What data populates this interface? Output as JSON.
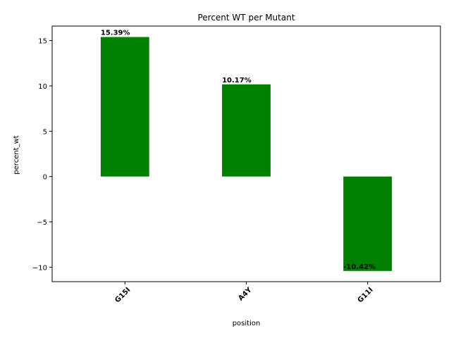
{
  "chart_data": {
    "type": "bar",
    "title": "Percent WT per Mutant",
    "xlabel": "position",
    "ylabel": "percent_wt",
    "categories": [
      "G15I",
      "A4Y",
      "G11I"
    ],
    "values": [
      15.39,
      10.17,
      -10.42
    ],
    "data_labels": [
      "15.39%",
      "10.17%",
      "-10.42%"
    ],
    "ylim": [
      -11.6,
      16.6
    ],
    "yticks": [
      -10,
      -5,
      0,
      5,
      10,
      15
    ],
    "ytick_labels": [
      "−10",
      "−5",
      "0",
      "5",
      "10",
      "15"
    ],
    "bar_color": "#008000",
    "grid": false,
    "xtick_rotation": "45 degrees"
  }
}
